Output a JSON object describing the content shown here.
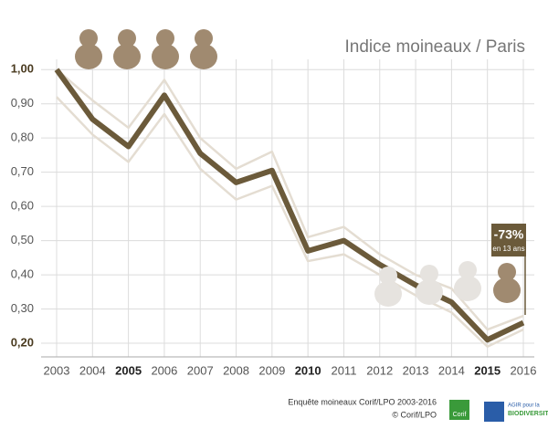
{
  "chart_data": {
    "type": "line",
    "title": "Indice moineaux / Paris",
    "categories": [
      "2003",
      "2004",
      "2005",
      "2006",
      "2007",
      "2008",
      "2009",
      "2010",
      "2011",
      "2012",
      "2013",
      "2014",
      "2015",
      "2016"
    ],
    "series": [
      {
        "color": "#e4ddd2",
        "width": 2.5,
        "values": [
          1.0,
          0.91,
          0.83,
          0.97,
          0.8,
          0.71,
          0.76,
          0.51,
          0.54,
          0.46,
          0.4,
          0.36,
          0.24,
          0.28
        ]
      },
      {
        "color": "#e4ddd2",
        "width": 2.5,
        "values": [
          0.92,
          0.81,
          0.73,
          0.87,
          0.71,
          0.62,
          0.66,
          0.44,
          0.46,
          0.4,
          0.34,
          0.29,
          0.19,
          0.24
        ]
      },
      {
        "color": "#6b5a3a",
        "width": 6,
        "values": [
          1.0,
          0.855,
          0.775,
          0.925,
          0.755,
          0.67,
          0.705,
          0.47,
          0.5,
          0.43,
          0.37,
          0.32,
          0.21,
          0.26
        ]
      }
    ],
    "ylim": [
      0.16,
      1.03
    ],
    "yticks": [
      {
        "value": 0.2,
        "label": "0,20"
      },
      {
        "value": 0.3,
        "label": "0,30"
      },
      {
        "value": 0.4,
        "label": "0,40"
      },
      {
        "value": 0.5,
        "label": "0,50"
      },
      {
        "value": 0.6,
        "label": "0,60"
      },
      {
        "value": 0.7,
        "label": "0,70"
      },
      {
        "value": 0.8,
        "label": "0,80"
      },
      {
        "value": 0.9,
        "label": "0,90"
      },
      {
        "value": 1.0,
        "label": "1,00"
      }
    ],
    "grid": true,
    "annotation": {
      "main": "-73%",
      "sub": "en 13 ans"
    },
    "source": "Enquête moineaux Corif/LPO 2003-2016",
    "credit": "© Corif/LPO",
    "logo_corif": "Corif",
    "logo_agir": "AGIR pour la",
    "logo_biodiv": "BIODIVERSITÉ"
  }
}
